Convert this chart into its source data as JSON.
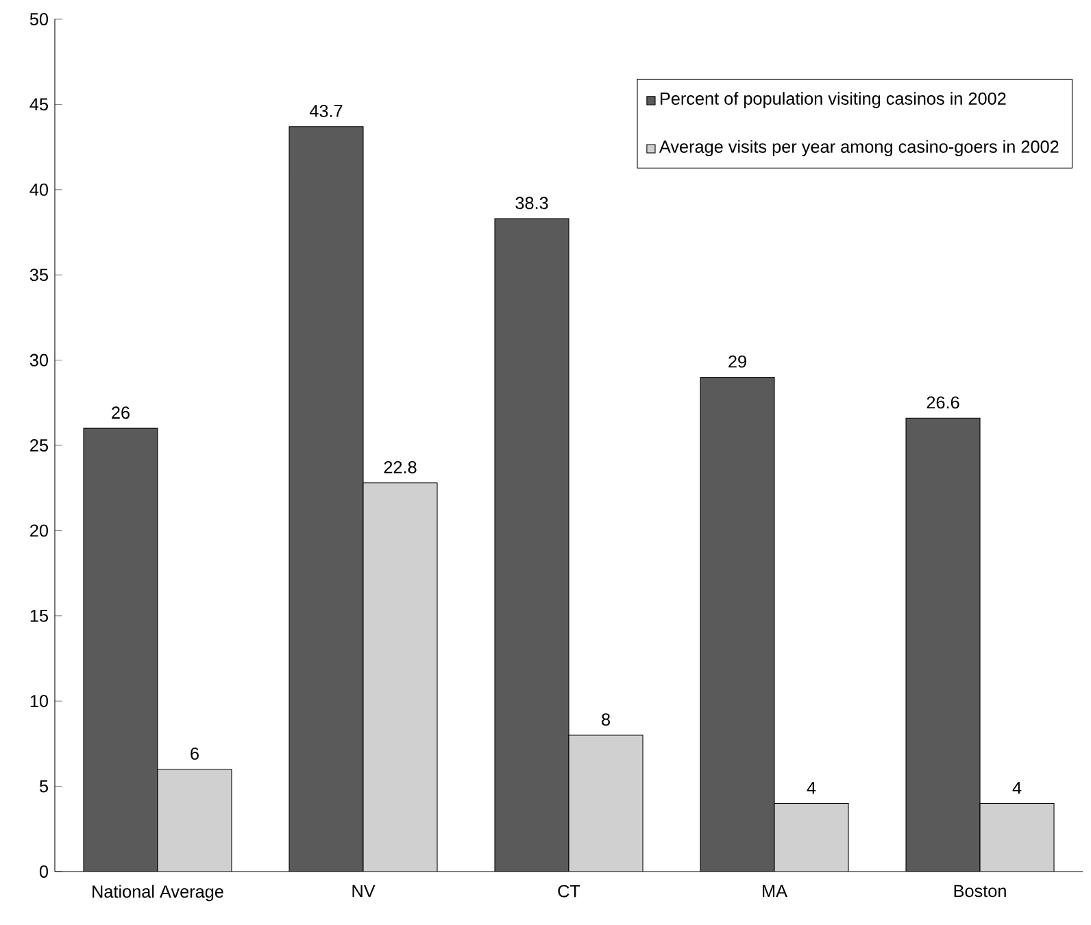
{
  "chart_data": {
    "type": "bar",
    "categories": [
      "National Average",
      "NV",
      "CT",
      "MA",
      "Boston"
    ],
    "series": [
      {
        "name": "Percent of population visiting casinos in 2002",
        "color": "#5a5a5a",
        "values": [
          26,
          43.7,
          38.3,
          29,
          26.6
        ]
      },
      {
        "name": "Average visits per year among casino-goers in 2002",
        "color": "#d0d0d0",
        "values": [
          6,
          22.8,
          8,
          4,
          4
        ]
      }
    ],
    "ylim": [
      0,
      50
    ],
    "yticks": [
      0,
      5,
      10,
      15,
      20,
      25,
      30,
      35,
      40,
      45,
      50
    ],
    "data_labels": true,
    "legend": "top right",
    "grid": false
  }
}
